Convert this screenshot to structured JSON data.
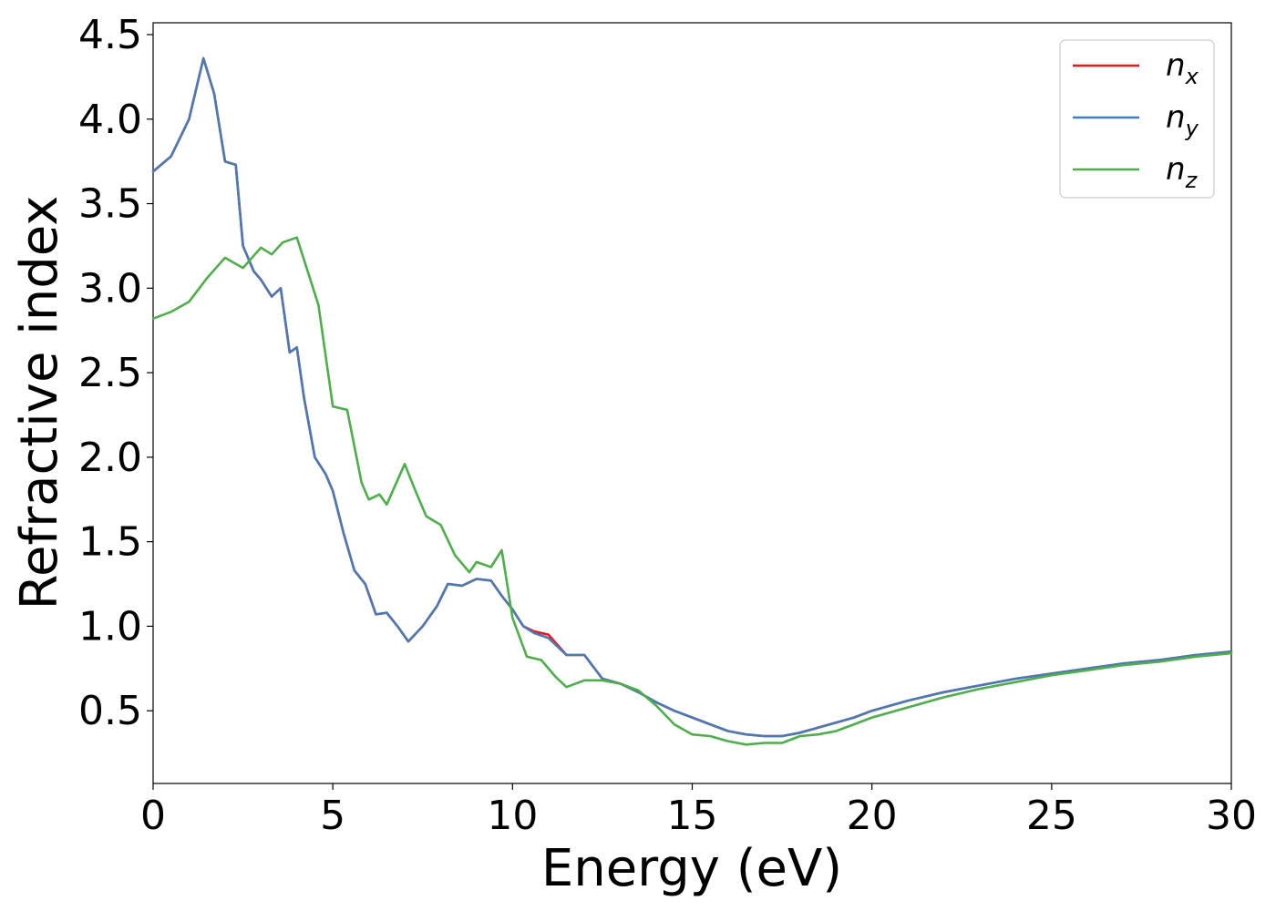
{
  "chart_data": {
    "type": "line",
    "title": "",
    "xlabel": "Energy (eV)",
    "ylabel": "Refractive index",
    "xlim": [
      0,
      30
    ],
    "ylim": [
      0.07,
      4.57
    ],
    "xticks": [
      "0",
      "5",
      "10",
      "15",
      "20",
      "25",
      "30"
    ],
    "yticks": [
      "0.5",
      "1.0",
      "1.5",
      "2.0",
      "2.5",
      "3.0",
      "3.5",
      "4.0",
      "4.5"
    ],
    "grid": false,
    "legend_position": "top-right",
    "series": [
      {
        "name_base": "n",
        "name_sub": "x",
        "color": "#e41a1c",
        "x": [
          0,
          0.5,
          1.0,
          1.4,
          1.7,
          2.0,
          2.3,
          2.5,
          2.8,
          3.0,
          3.3,
          3.55,
          3.8,
          4.0,
          4.2,
          4.5,
          4.8,
          5.0,
          5.3,
          5.6,
          5.9,
          6.2,
          6.5,
          6.8,
          7.1,
          7.5,
          7.9,
          8.2,
          8.6,
          9.0,
          9.4,
          9.7,
          10.0,
          10.3,
          10.6,
          11.0,
          11.5,
          12.0,
          12.5,
          13.0,
          13.5,
          14.0,
          14.5,
          15.0,
          15.5,
          16.0,
          16.5,
          17.0,
          17.5,
          18.0,
          18.5,
          19.0,
          19.5,
          20.0,
          21.0,
          22.0,
          23.0,
          24.0,
          25.0,
          26.0,
          27.0,
          28.0,
          29.0,
          30.0
        ],
        "y": [
          3.69,
          3.78,
          4.0,
          4.36,
          4.15,
          3.75,
          3.73,
          3.25,
          3.1,
          3.05,
          2.95,
          3.0,
          2.62,
          2.65,
          2.35,
          2.0,
          1.9,
          1.8,
          1.55,
          1.33,
          1.25,
          1.07,
          1.08,
          1.0,
          0.91,
          1.0,
          1.12,
          1.25,
          1.24,
          1.28,
          1.27,
          1.18,
          1.1,
          1.0,
          0.97,
          0.95,
          0.83,
          0.83,
          0.69,
          0.66,
          0.61,
          0.55,
          0.5,
          0.46,
          0.42,
          0.38,
          0.36,
          0.35,
          0.35,
          0.37,
          0.4,
          0.43,
          0.46,
          0.5,
          0.56,
          0.61,
          0.65,
          0.69,
          0.72,
          0.75,
          0.78,
          0.8,
          0.83,
          0.85
        ]
      },
      {
        "name_base": "n",
        "name_sub": "y",
        "color": "#4a7ab5",
        "x": [
          0,
          0.5,
          1.0,
          1.4,
          1.7,
          2.0,
          2.3,
          2.5,
          2.8,
          3.0,
          3.3,
          3.55,
          3.8,
          4.0,
          4.2,
          4.5,
          4.8,
          5.0,
          5.3,
          5.6,
          5.9,
          6.2,
          6.5,
          6.8,
          7.1,
          7.5,
          7.9,
          8.2,
          8.6,
          9.0,
          9.4,
          9.7,
          10.0,
          10.3,
          10.6,
          11.0,
          11.5,
          12.0,
          12.5,
          13.0,
          13.5,
          14.0,
          14.5,
          15.0,
          15.5,
          16.0,
          16.5,
          17.0,
          17.5,
          18.0,
          18.5,
          19.0,
          19.5,
          20.0,
          21.0,
          22.0,
          23.0,
          24.0,
          25.0,
          26.0,
          27.0,
          28.0,
          29.0,
          30.0
        ],
        "y": [
          3.69,
          3.78,
          4.0,
          4.36,
          4.15,
          3.75,
          3.73,
          3.25,
          3.1,
          3.05,
          2.95,
          3.0,
          2.62,
          2.65,
          2.35,
          2.0,
          1.9,
          1.8,
          1.55,
          1.33,
          1.25,
          1.07,
          1.08,
          1.0,
          0.91,
          1.0,
          1.12,
          1.25,
          1.24,
          1.28,
          1.27,
          1.18,
          1.1,
          1.0,
          0.96,
          0.93,
          0.83,
          0.83,
          0.69,
          0.66,
          0.61,
          0.55,
          0.5,
          0.46,
          0.42,
          0.38,
          0.36,
          0.35,
          0.35,
          0.37,
          0.4,
          0.43,
          0.46,
          0.5,
          0.56,
          0.61,
          0.65,
          0.69,
          0.72,
          0.75,
          0.78,
          0.8,
          0.83,
          0.85
        ]
      },
      {
        "name_base": "n",
        "name_sub": "z",
        "color": "#4daf4a",
        "x": [
          0,
          0.5,
          1.0,
          1.5,
          2.0,
          2.5,
          3.0,
          3.3,
          3.6,
          4.0,
          4.3,
          4.6,
          5.0,
          5.4,
          5.8,
          6.0,
          6.3,
          6.5,
          7.0,
          7.3,
          7.6,
          8.0,
          8.4,
          8.8,
          9.0,
          9.4,
          9.7,
          10.0,
          10.4,
          10.8,
          11.2,
          11.5,
          12.0,
          12.5,
          13.0,
          13.5,
          14.0,
          14.5,
          15.0,
          15.5,
          16.0,
          16.5,
          17.0,
          17.5,
          18.0,
          18.5,
          19.0,
          19.5,
          20.0,
          21.0,
          22.0,
          23.0,
          24.0,
          25.0,
          26.0,
          27.0,
          28.0,
          29.0,
          30.0
        ],
        "y": [
          2.82,
          2.86,
          2.92,
          3.06,
          3.18,
          3.12,
          3.24,
          3.2,
          3.27,
          3.3,
          3.1,
          2.9,
          2.3,
          2.28,
          1.85,
          1.75,
          1.78,
          1.72,
          1.96,
          1.8,
          1.65,
          1.6,
          1.42,
          1.32,
          1.38,
          1.35,
          1.45,
          1.05,
          0.82,
          0.8,
          0.7,
          0.64,
          0.68,
          0.68,
          0.66,
          0.62,
          0.53,
          0.42,
          0.36,
          0.35,
          0.32,
          0.3,
          0.31,
          0.31,
          0.35,
          0.36,
          0.38,
          0.42,
          0.46,
          0.52,
          0.58,
          0.63,
          0.67,
          0.71,
          0.74,
          0.77,
          0.79,
          0.82,
          0.84
        ]
      }
    ]
  }
}
